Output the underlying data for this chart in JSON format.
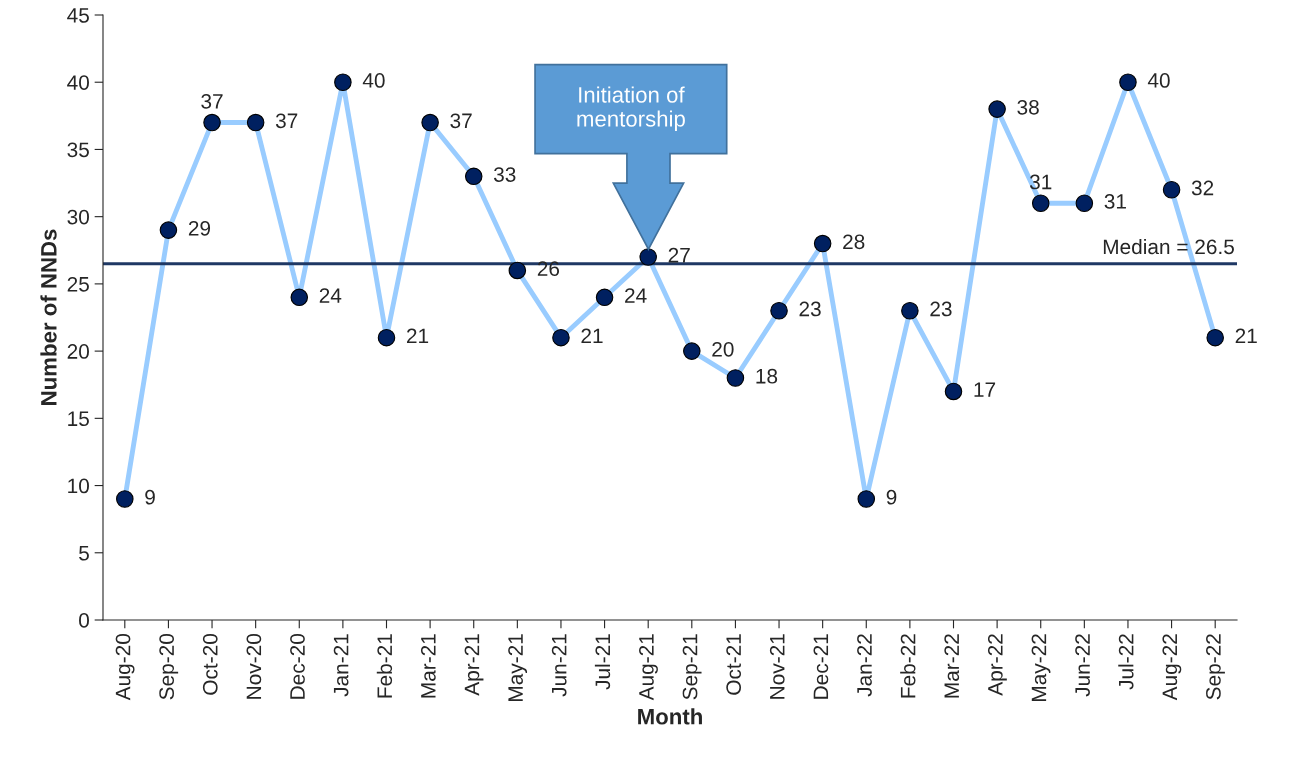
{
  "chart_data": {
    "type": "line",
    "xlabel": "Month",
    "ylabel": "Number of NNDs",
    "categories": [
      "Aug-20",
      "Sep-20",
      "Oct-20",
      "Nov-20",
      "Dec-20",
      "Jan-21",
      "Feb-21",
      "Mar-21",
      "Apr-21",
      "May-21",
      "Jun-21",
      "Jul-21",
      "Aug-21",
      "Sep-21",
      "Oct-21",
      "Nov-21",
      "Dec-21",
      "Jan-22",
      "Feb-22",
      "Mar-22",
      "Apr-22",
      "May-22",
      "Jun-22",
      "Jul-22",
      "Aug-22",
      "Sep-22"
    ],
    "series": [
      {
        "color": "#99ccff",
        "values": [
          9,
          29,
          37,
          37,
          24,
          40,
          21,
          37,
          33,
          26,
          21,
          24,
          27,
          20,
          18,
          23,
          28,
          9,
          23,
          17,
          38,
          31,
          31,
          40,
          32,
          21
        ]
      }
    ],
    "marker": "circle",
    "data_labels": true,
    "ylim": [
      0,
      45
    ],
    "yticks": [
      0,
      5,
      10,
      15,
      20,
      25,
      30,
      35,
      40,
      45
    ],
    "grid": false,
    "legend": false,
    "ref_lines": [
      {
        "axis": "y",
        "value": 26.5,
        "label": "Median = 26.5",
        "color": "#1f3864"
      }
    ],
    "annotations": [
      "Initiation of\nmentorship"
    ]
  }
}
